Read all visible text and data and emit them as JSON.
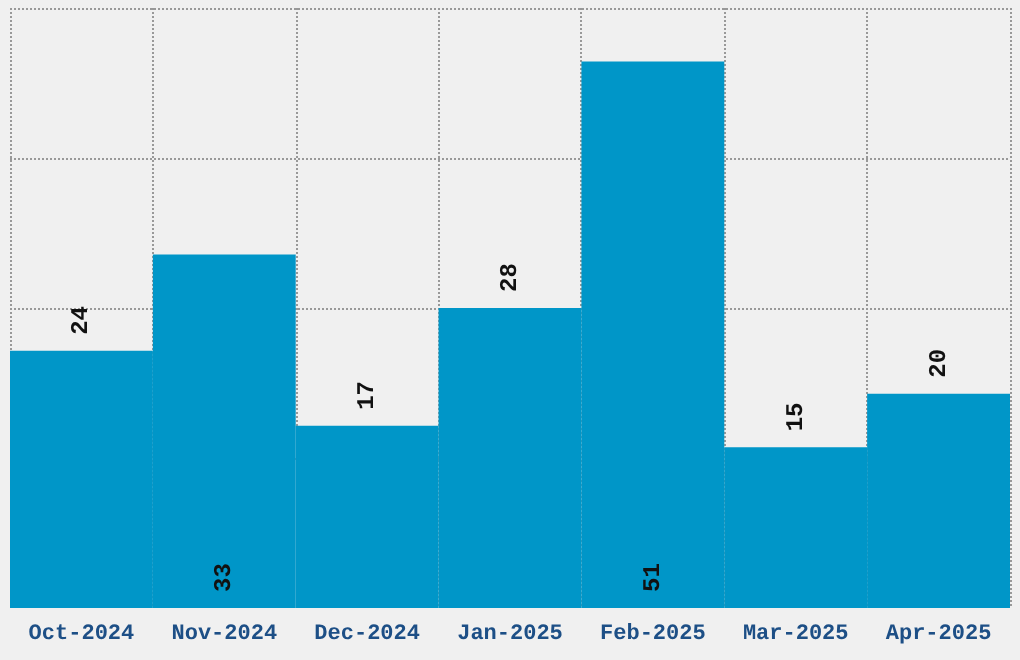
{
  "chart_data": {
    "type": "bar",
    "categories": [
      "Oct-2024",
      "Nov-2024",
      "Dec-2024",
      "Jan-2025",
      "Feb-2025",
      "Mar-2025",
      "Apr-2025"
    ],
    "values": [
      24,
      33,
      17,
      28,
      51,
      15,
      20
    ],
    "color": "#0096c8",
    "ylim": [
      0,
      56
    ],
    "yticks": [
      {
        "value": 14,
        "label": null
      },
      {
        "value": 28,
        "label": null
      },
      {
        "value": 42,
        "label": null
      },
      {
        "value": 56,
        "label": null
      }
    ],
    "tick_labels": "x",
    "grid": true,
    "data_labels": true
  }
}
